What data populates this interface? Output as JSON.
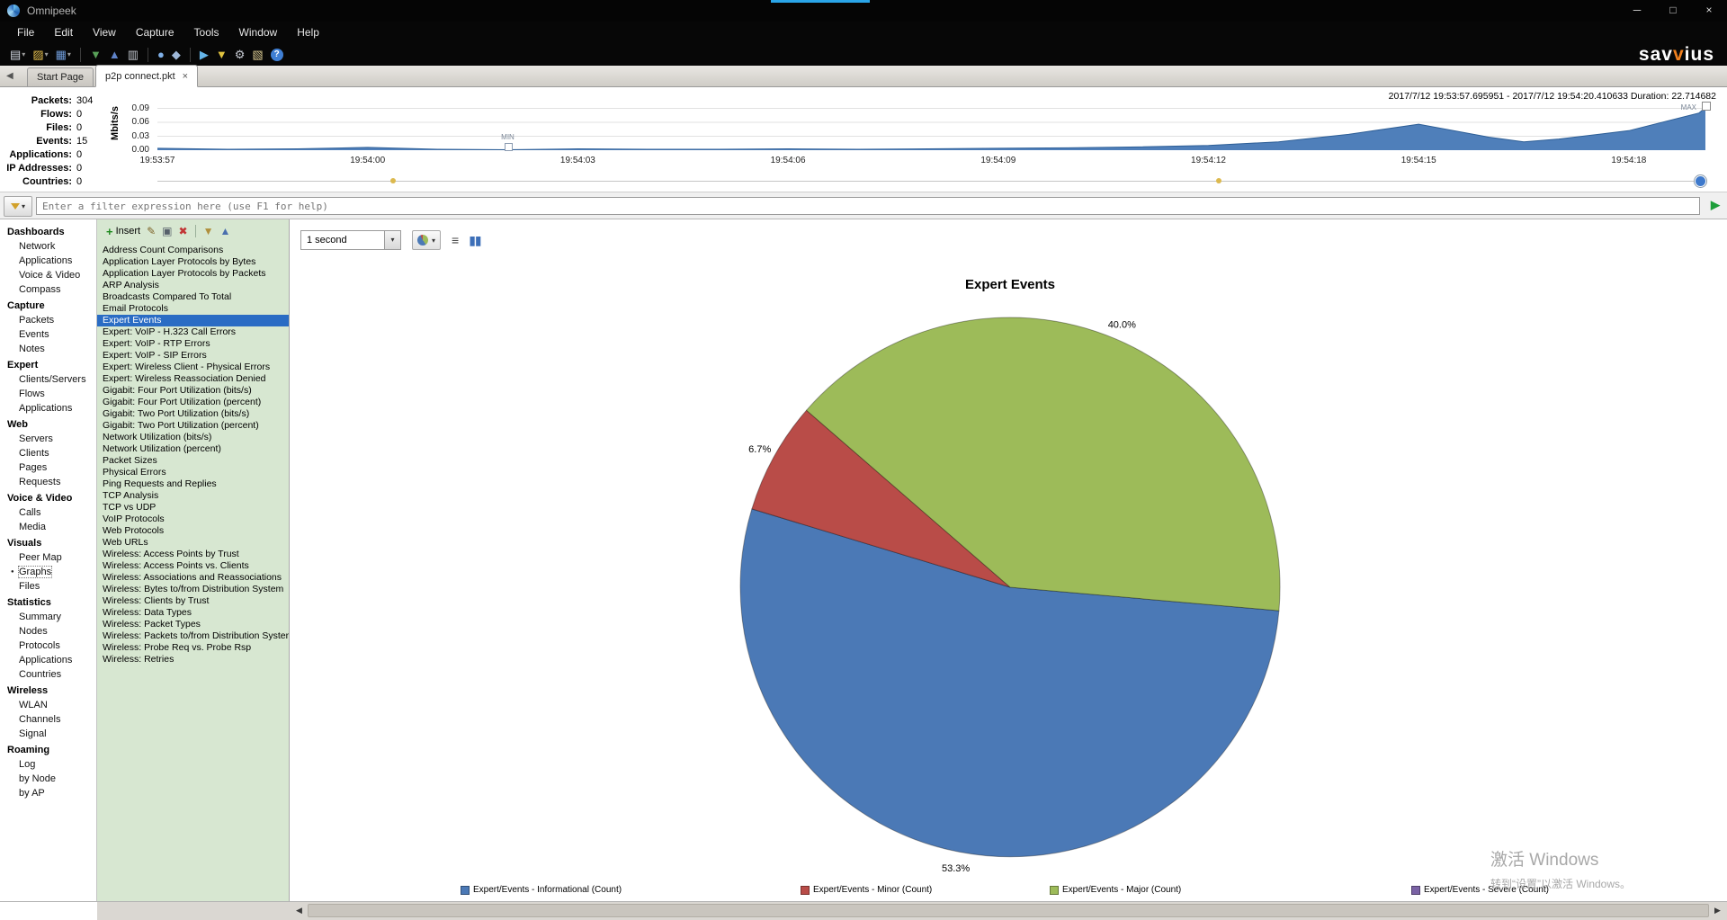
{
  "window": {
    "title": "Omnipeek",
    "controls": {
      "minimize": "─",
      "maximize": "□",
      "close": "×"
    }
  },
  "brand": {
    "left": "sav",
    "accent": "v",
    "right": "ius"
  },
  "menu": {
    "items": [
      "File",
      "Edit",
      "View",
      "Capture",
      "Tools",
      "Window",
      "Help"
    ]
  },
  "toolbar_icons": [
    {
      "name": "new-capture-icon",
      "glyph": "▤",
      "color": "#d9dee8",
      "dropdown": true
    },
    {
      "name": "open-file-icon",
      "glyph": "▨",
      "color": "#e2bd4e",
      "dropdown": true
    },
    {
      "name": "save-icon",
      "glyph": "▦",
      "color": "#6f9bd8",
      "dropdown": true
    },
    {
      "separator": true
    },
    {
      "name": "import-packets-icon",
      "glyph": "▼",
      "color": "#58a058"
    },
    {
      "name": "export-packets-icon",
      "glyph": "▲",
      "color": "#5f83c8"
    },
    {
      "name": "print-icon",
      "glyph": "▥",
      "color": "#c2c6ce"
    },
    {
      "separator": true
    },
    {
      "name": "find-pattern-icon",
      "glyph": "●",
      "color": "#7fb0e8"
    },
    {
      "name": "go-to-packet-icon",
      "glyph": "◆",
      "color": "#9fb8d8"
    },
    {
      "separator": true
    },
    {
      "name": "start-capture-icon",
      "glyph": "▶",
      "color": "#64b4e8"
    },
    {
      "name": "filter-settings-icon",
      "glyph": "▼",
      "color": "#e0c23f"
    },
    {
      "name": "options-icon",
      "glyph": "⚙",
      "color": "#c8ccd4"
    },
    {
      "name": "notes-icon",
      "glyph": "▧",
      "color": "#d8c890"
    },
    {
      "name": "help-icon",
      "glyph": "?",
      "color": "#ffffff",
      "badge": "#3f7fd4"
    }
  ],
  "tabs": {
    "back_icon": "◀",
    "items": [
      {
        "label": "Start Page",
        "active": false
      },
      {
        "label": "p2p connect.pkt",
        "active": true,
        "close": "×"
      }
    ]
  },
  "stats": [
    {
      "label": "Packets:",
      "value": "304"
    },
    {
      "label": "Flows:",
      "value": "0"
    },
    {
      "label": "Files:",
      "value": "0"
    },
    {
      "label": "Events:",
      "value": "15"
    },
    {
      "label": "Applications:",
      "value": "0"
    },
    {
      "label": "IP Addresses:",
      "value": "0"
    },
    {
      "label": "Countries:",
      "value": "0"
    }
  ],
  "timeline": {
    "range_text": "2017/7/12 19:53:57.695951 - 2017/7/12 19:54:20.410633  Duration: 22.714682",
    "min_label": "MIN",
    "max_label": "MAX"
  },
  "filter": {
    "placeholder": "Enter a filter expression here (use F1 for help)",
    "run_icon": "▶"
  },
  "sidebar": {
    "sections": [
      {
        "title": "Dashboards",
        "items": [
          {
            "label": "Network"
          },
          {
            "label": "Applications"
          },
          {
            "label": "Voice & Video"
          },
          {
            "label": "Compass"
          }
        ]
      },
      {
        "title": "Capture",
        "items": [
          {
            "label": "Packets"
          },
          {
            "label": "Events"
          },
          {
            "label": "Notes"
          }
        ]
      },
      {
        "title": "Expert",
        "items": [
          {
            "label": "Clients/Servers"
          },
          {
            "label": "Flows"
          },
          {
            "label": "Applications"
          }
        ]
      },
      {
        "title": "Web",
        "items": [
          {
            "label": "Servers"
          },
          {
            "label": "Clients"
          },
          {
            "label": "Pages"
          },
          {
            "label": "Requests"
          }
        ]
      },
      {
        "title": "Voice & Video",
        "items": [
          {
            "label": "Calls"
          },
          {
            "label": "Media"
          }
        ]
      },
      {
        "title": "Visuals",
        "items": [
          {
            "label": "Peer Map"
          },
          {
            "label": "Graphs",
            "selected": true
          },
          {
            "label": "Files"
          }
        ]
      },
      {
        "title": "Statistics",
        "items": [
          {
            "label": "Summary"
          },
          {
            "label": "Nodes"
          },
          {
            "label": "Protocols"
          },
          {
            "label": "Applications"
          },
          {
            "label": "Countries"
          }
        ]
      },
      {
        "title": "Wireless",
        "items": [
          {
            "label": "WLAN"
          },
          {
            "label": "Channels"
          },
          {
            "label": "Signal"
          }
        ]
      },
      {
        "title": "Roaming",
        "items": [
          {
            "label": "Log"
          },
          {
            "label": "by Node"
          },
          {
            "label": "by AP"
          }
        ]
      }
    ]
  },
  "graph_panel": {
    "toolbar": {
      "insert_label": "Insert",
      "plus_icon": "+",
      "icons": [
        {
          "name": "edit-graph-icon",
          "glyph": "✎",
          "color": "#7d6226"
        },
        {
          "name": "duplicate-graph-icon",
          "glyph": "▣",
          "color": "#56606a"
        },
        {
          "name": "delete-graph-icon",
          "glyph": "✖",
          "color": "#c23535"
        },
        {
          "separator": true
        },
        {
          "name": "import-graph-icon",
          "glyph": "▼",
          "color": "#b08f3c"
        },
        {
          "name": "export-graph-icon",
          "glyph": "▲",
          "color": "#4a6fae"
        }
      ]
    },
    "items": [
      "Address Count Comparisons",
      "Application Layer Protocols by Bytes",
      "Application Layer Protocols by Packets",
      "ARP Analysis",
      "Broadcasts Compared To Total",
      "Email Protocols",
      "Expert Events",
      "Expert: VoIP - H.323 Call Errors",
      "Expert: VoIP - RTP Errors",
      "Expert: VoIP - SIP Errors",
      "Expert: Wireless Client - Physical Errors",
      "Expert: Wireless Reassociation Denied",
      "Gigabit: Four Port Utilization (bits/s)",
      "Gigabit: Four Port Utilization (percent)",
      "Gigabit: Two Port Utilization (bits/s)",
      "Gigabit: Two Port Utilization (percent)",
      "Network Utilization (bits/s)",
      "Network Utilization (percent)",
      "Packet Sizes",
      "Physical Errors",
      "Ping Requests and Replies",
      "TCP Analysis",
      "TCP vs UDP",
      "VoIP Protocols",
      "Web Protocols",
      "Web URLs",
      "Wireless: Access Points by Trust",
      "Wireless: Access Points vs. Clients",
      "Wireless: Associations and Reassociations",
      "Wireless: Bytes to/from Distribution System",
      "Wireless: Clients by Trust",
      "Wireless: Data Types",
      "Wireless: Packet Types",
      "Wireless: Packets to/from Distribution System",
      "Wireless: Probe Req vs. Probe Rsp",
      "Wireless: Retries"
    ],
    "selected_index": 6
  },
  "chart_toolbar": {
    "interval_value": "1 second",
    "icons": [
      {
        "name": "legend-options-icon",
        "glyph": "≡",
        "color": "#454545"
      },
      {
        "name": "pause-updates-icon",
        "glyph": "▮▮",
        "color": "#3d6fb8"
      }
    ]
  },
  "chart_data": [
    {
      "id": "capture-timeline",
      "type": "area",
      "ylabel": "Mbits/s",
      "ylim": [
        0,
        0.105
      ],
      "yticks": [
        0.09,
        0.06,
        0.03,
        0.0
      ],
      "xtick_labels": [
        "19:53:57",
        "19:54:00",
        "19:54:03",
        "19:54:06",
        "19:54:09",
        "19:54:12",
        "19:54:15",
        "19:54:18"
      ],
      "xtick_interval_seconds": 3,
      "x_seconds": [
        0,
        1,
        2,
        3,
        4,
        5,
        6,
        7,
        8,
        9,
        10,
        11,
        12,
        13,
        14,
        15,
        16,
        17,
        18,
        19,
        19.5,
        20,
        21,
        22,
        22.1
      ],
      "values": [
        0.004,
        0.002,
        0.003,
        0.006,
        0.002,
        0.001,
        0.003,
        0.002,
        0.002,
        0.003,
        0.002,
        0.003,
        0.004,
        0.005,
        0.007,
        0.01,
        0.018,
        0.034,
        0.056,
        0.028,
        0.018,
        0.024,
        0.042,
        0.08,
        0.092
      ],
      "min_marker_second": 5,
      "color": "#4f7fba",
      "line_color": "#2d5e96",
      "grid": true
    },
    {
      "id": "expert-events",
      "type": "pie",
      "title": "Expert Events",
      "start_angle_deg": 95,
      "slices": [
        {
          "label": "Expert/Events - Informational (Count)",
          "value": 53.3,
          "color": "#4b79b6"
        },
        {
          "label": "Expert/Events - Minor (Count)",
          "value": 6.7,
          "color": "#b94c48"
        },
        {
          "label": "Expert/Events - Major (Count)",
          "value": 40.0,
          "color": "#9dbb59"
        },
        {
          "label": "Expert/Events - Severe (Count)",
          "value": 0.0,
          "color": "#7a62a5"
        }
      ],
      "legend_position": "bottom"
    }
  ],
  "watermark": {
    "line1": "激活 Windows",
    "line2": "转到“设置”以激活 Windows。"
  },
  "scrollbar": {
    "left_icon": "◀",
    "right_icon": "▶"
  }
}
